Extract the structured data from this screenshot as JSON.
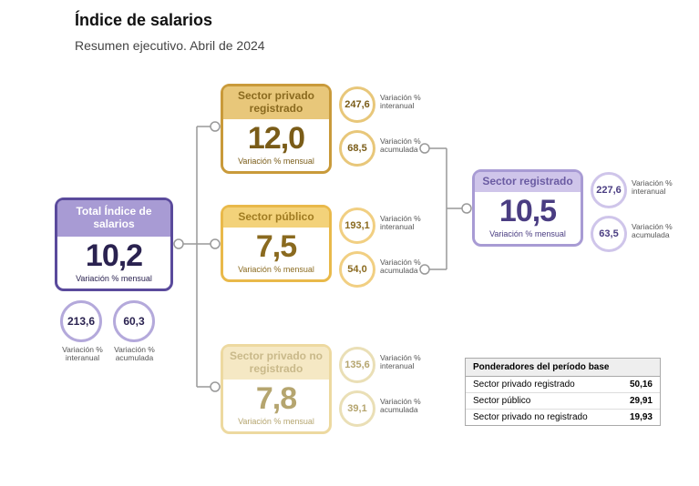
{
  "title": "Índice de salarios",
  "subtitle": "Resumen ejecutivo. Abril de 2024",
  "colors": {
    "total": {
      "border": "#5a4a9c",
      "header_bg": "#a89bd4",
      "header_text": "#ffffff",
      "text": "#2a2250",
      "ring": "#b4a9db"
    },
    "priv_reg": {
      "border": "#c99a3a",
      "header_bg": "#e8c77a",
      "header_text": "#8a6a1f",
      "text": "#7a5c18",
      "ring": "#e8c77a"
    },
    "publico": {
      "border": "#e9b94a",
      "header_bg": "#f3d27a",
      "header_text": "#a07c22",
      "text": "#8a6a1f",
      "ring": "#f1cf82"
    },
    "priv_noreg": {
      "border": "#edd9a0",
      "header_bg": "#f5e8c4",
      "header_text": "#c9b98a",
      "text": "#b5a56f",
      "ring": "#eadfb6"
    },
    "reg": {
      "border": "#a89bd4",
      "header_bg": "#cfc5ea",
      "header_text": "#6a5ba2",
      "text": "#4a3d82",
      "ring": "#cfc5ea"
    },
    "connector": "#999999"
  },
  "cards": {
    "total": {
      "header": "Total Índice de salarios",
      "value": "10,2",
      "footer": "Variación % mensual"
    },
    "priv_reg": {
      "header": "Sector privado registrado",
      "value": "12,0",
      "footer": "Variación % mensual"
    },
    "publico": {
      "header": "Sector público",
      "value": "7,5",
      "footer": "Variación % mensual"
    },
    "priv_noreg": {
      "header": "Sector privado no registrado",
      "value": "7,8",
      "footer": "Variación % mensual"
    },
    "reg": {
      "header": "Sector registrado",
      "value": "10,5",
      "footer": "Variación % mensual"
    }
  },
  "rings": {
    "total_inter": {
      "value": "213,6",
      "label": "Variación % interanual"
    },
    "total_acum": {
      "value": "60,3",
      "label": "Variación % acumulada"
    },
    "priv_reg_inter": {
      "value": "247,6",
      "label": "Variación % interanual"
    },
    "priv_reg_acum": {
      "value": "68,5",
      "label": "Variación % acumulada"
    },
    "publico_inter": {
      "value": "193,1",
      "label": "Variación % interanual"
    },
    "publico_acum": {
      "value": "54,0",
      "label": "Variación % acumulada"
    },
    "priv_noreg_inter": {
      "value": "135,6",
      "label": "Variación % interanual"
    },
    "priv_noreg_acum": {
      "value": "39,1",
      "label": "Variación % acumulada"
    },
    "reg_inter": {
      "value": "227,6",
      "label": "Variación % interanual"
    },
    "reg_acum": {
      "value": "63,5",
      "label": "Variación % acumulada"
    }
  },
  "ptable": {
    "header": "Ponderadores del período base",
    "rows": [
      {
        "label": "Sector privado registrado",
        "value": "50,16"
      },
      {
        "label": "Sector público",
        "value": "29,91"
      },
      {
        "label": "Sector privado no registrado",
        "value": "19,93"
      }
    ]
  }
}
